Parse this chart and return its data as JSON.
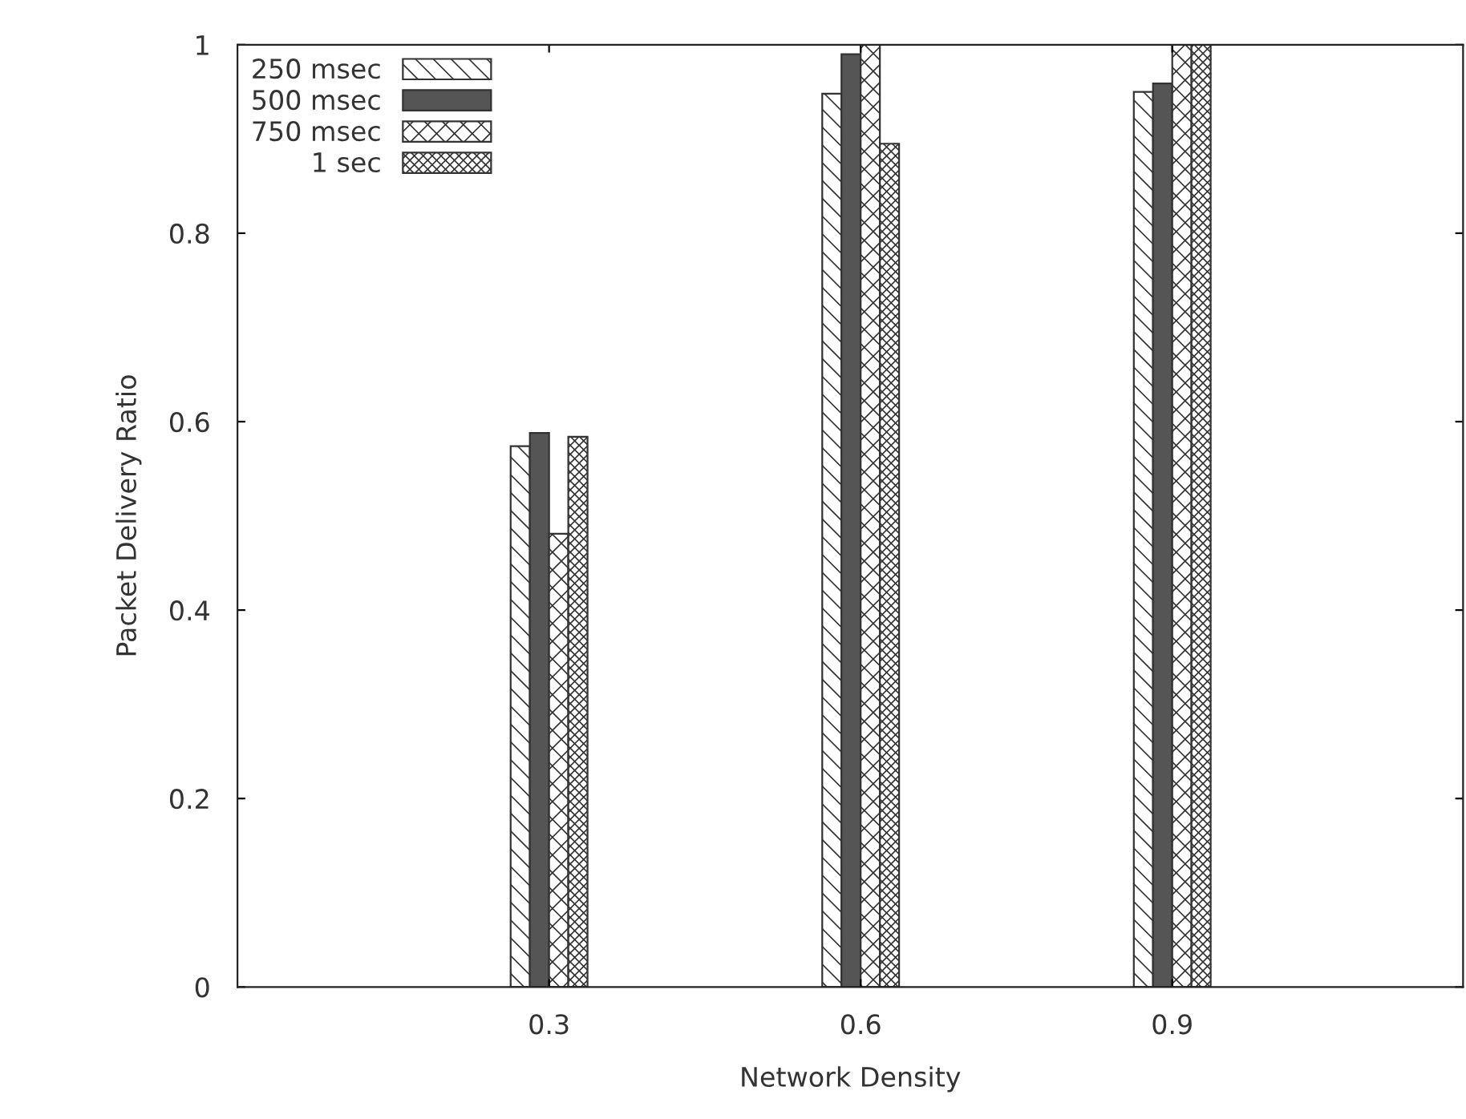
{
  "chart_data": {
    "type": "bar",
    "xlabel": "Network Density",
    "ylabel": "Packet Delivery Ratio",
    "x": [
      0.3,
      0.6,
      0.9
    ],
    "series": [
      {
        "name": "250 msec",
        "color": "#333333",
        "values": [
          0.574,
          0.948,
          0.95
        ]
      },
      {
        "name": "500 msec",
        "color": "#555555",
        "values": [
          0.588,
          0.99,
          0.959
        ]
      },
      {
        "name": "750 msec",
        "color": "#333333",
        "values": [
          0.481,
          1.0,
          1.0
        ]
      },
      {
        "name": "1 sec",
        "color": "#333333",
        "values": [
          0.584,
          0.895,
          1.0
        ]
      }
    ],
    "xlim": [
      0,
      1.18
    ],
    "xticks": [
      0.3,
      0.6,
      0.9
    ],
    "ylim": [
      0,
      1
    ],
    "yticks": [
      0,
      0.2,
      0.4,
      0.6,
      0.8,
      1
    ],
    "grid": false,
    "legend": "top left"
  }
}
